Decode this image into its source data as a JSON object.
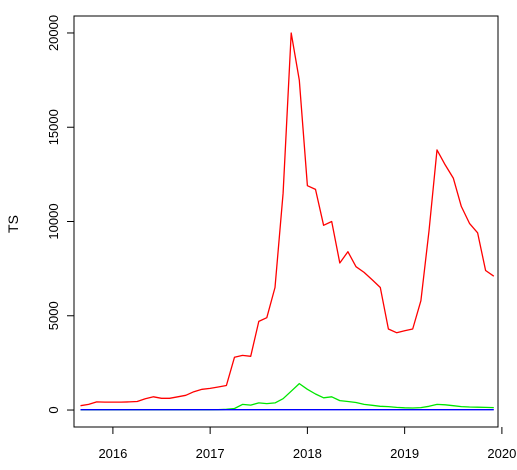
{
  "chart_data": {
    "type": "line",
    "title": "",
    "xlabel": "",
    "ylabel": "TS",
    "xlim": [
      2015.6,
      2019.96
    ],
    "ylim": [
      -900,
      20900
    ],
    "x_ticks": [
      2016,
      2017,
      2018,
      2019,
      2020
    ],
    "x_tick_labels": [
      "2016",
      "2017",
      "2018",
      "2019",
      "2020"
    ],
    "y_ticks": [
      0,
      5000,
      10000,
      15000,
      20000
    ],
    "y_tick_labels": [
      "0",
      "5000",
      "10000",
      "15000",
      "20000"
    ],
    "grid": false,
    "legend": "none",
    "series": [
      {
        "color": "#ff0000",
        "x": [
          2015.667,
          2015.75,
          2015.833,
          2015.917,
          2016.0,
          2016.083,
          2016.167,
          2016.25,
          2016.333,
          2016.417,
          2016.5,
          2016.583,
          2016.667,
          2016.75,
          2016.833,
          2016.917,
          2017.0,
          2017.083,
          2017.167,
          2017.25,
          2017.333,
          2017.417,
          2017.5,
          2017.583,
          2017.667,
          2017.75,
          2017.833,
          2017.917,
          2018.0,
          2018.083,
          2018.167,
          2018.25,
          2018.333,
          2018.417,
          2018.5,
          2018.583,
          2018.667,
          2018.75,
          2018.833,
          2018.917,
          2019.0,
          2019.083,
          2019.167,
          2019.25,
          2019.333,
          2019.417,
          2019.5,
          2019.583,
          2019.667,
          2019.75,
          2019.833,
          2019.917
        ],
        "values": [
          230,
          300,
          430,
          420,
          420,
          420,
          430,
          450,
          600,
          700,
          620,
          620,
          700,
          780,
          970,
          1100,
          1150,
          1220,
          1300,
          2800,
          2900,
          2850,
          4700,
          4900,
          6500,
          11500,
          20000,
          17500,
          11900,
          11700,
          9800,
          10000,
          7800,
          8400,
          7600,
          7300,
          6900,
          6500,
          4300,
          4100,
          4200,
          4300,
          5800,
          9500,
          13800,
          13000,
          12300,
          10800,
          9900,
          9400,
          7400,
          7100
        ]
      },
      {
        "color": "#00e600",
        "x": [
          2015.667,
          2015.75,
          2015.833,
          2015.917,
          2016.0,
          2016.083,
          2016.167,
          2016.25,
          2016.333,
          2016.417,
          2016.5,
          2016.583,
          2016.667,
          2016.75,
          2016.833,
          2016.917,
          2017.0,
          2017.083,
          2017.167,
          2017.25,
          2017.333,
          2017.417,
          2017.5,
          2017.583,
          2017.667,
          2017.75,
          2017.833,
          2017.917,
          2018.0,
          2018.083,
          2018.167,
          2018.25,
          2018.333,
          2018.417,
          2018.5,
          2018.583,
          2018.667,
          2018.75,
          2018.833,
          2018.917,
          2019.0,
          2019.083,
          2019.167,
          2019.25,
          2019.333,
          2019.417,
          2019.5,
          2019.583,
          2019.667,
          2019.75,
          2019.833,
          2019.917
        ],
        "values": [
          10,
          10,
          10,
          10,
          10,
          10,
          10,
          10,
          10,
          10,
          10,
          10,
          10,
          10,
          10,
          10,
          10,
          20,
          40,
          80,
          300,
          260,
          380,
          340,
          380,
          600,
          1000,
          1400,
          1100,
          850,
          650,
          700,
          500,
          450,
          400,
          300,
          250,
          200,
          180,
          140,
          120,
          110,
          130,
          200,
          300,
          280,
          230,
          180,
          160,
          150,
          140,
          130
        ]
      },
      {
        "color": "#0000ff",
        "x": [
          2015.667,
          2019.917
        ],
        "values": [
          20,
          20
        ]
      }
    ]
  }
}
